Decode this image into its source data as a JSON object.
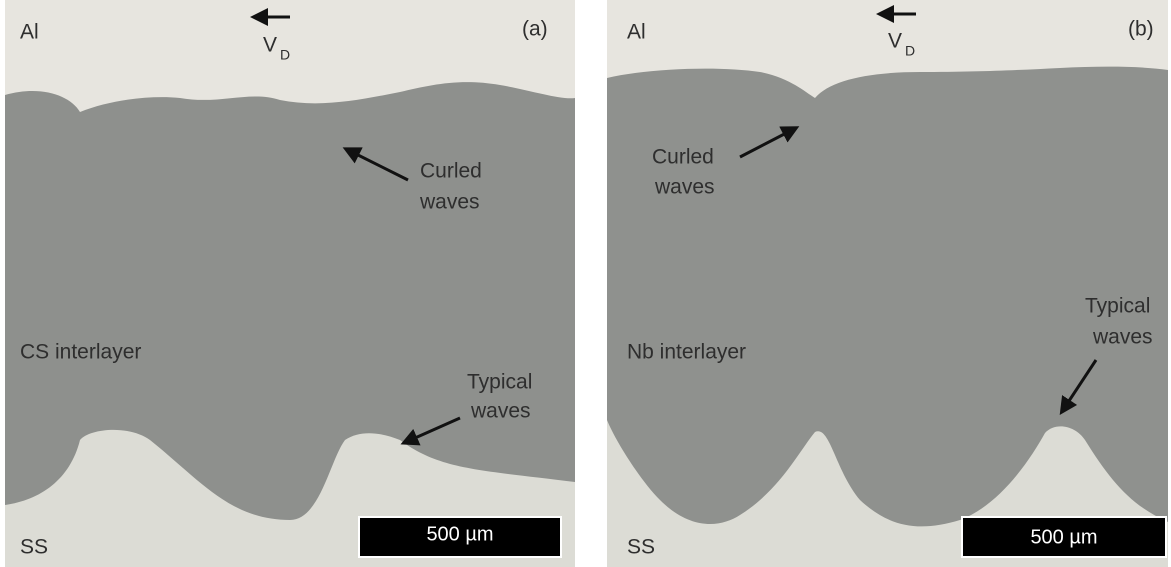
{
  "panels": [
    {
      "label": "(a)",
      "top_material": "Al",
      "velocity_symbol": "V",
      "velocity_subscript": "D",
      "annotations": [
        {
          "lines": [
            "Curled",
            "waves"
          ]
        },
        {
          "lines": [
            "Typical",
            "waves"
          ]
        }
      ],
      "interlayer": "CS interlayer",
      "bottom_material": "SS",
      "scale_bar": "500 µm"
    },
    {
      "label": "(b)",
      "top_material": "Al",
      "velocity_symbol": "V",
      "velocity_subscript": "D",
      "annotations": [
        {
          "lines": [
            "Curled",
            "waves"
          ]
        },
        {
          "lines": [
            "Typical",
            "waves"
          ]
        }
      ],
      "interlayer": "Nb interlayer",
      "bottom_material": "SS",
      "scale_bar": "500 µm"
    }
  ]
}
